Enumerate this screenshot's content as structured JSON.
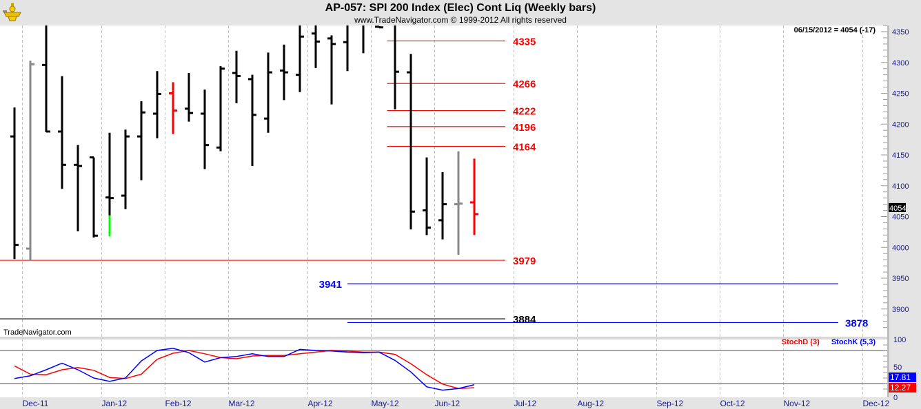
{
  "header": {
    "title": "AP-057:  SPI 200 Index (Elec) Cont Liq  (Weekly bars)",
    "subtitle": "www.TradeNavigator.com © 1999-2012 All rights reserved",
    "readout": "06/15/2012 = 4054 (-17)",
    "watermark": "TradeNavigator.com"
  },
  "colors": {
    "up": "#000000",
    "gray": "#888888",
    "red": "#ff0000",
    "green": "#00ff00",
    "stochD": "#ff0000",
    "stochK": "#0000ff",
    "axis_text": "#1a1a8c"
  },
  "chart_data": [
    {
      "type": "ohlc",
      "title": "SPI 200 Index (Elec) Cont Liq (Weekly bars)",
      "ylim": [
        3860,
        4365
      ],
      "y_ticks": [
        "4350",
        "4300",
        "4250",
        "4200",
        "4150",
        "4100",
        "4050",
        "4000",
        "3950",
        "3900"
      ],
      "last_price_label": "4054",
      "bars": [
        {
          "o": 4180,
          "h": 4227,
          "l": 3981,
          "c": 4004
        },
        {
          "o": 3998,
          "h": 4303,
          "l": 3978,
          "c": 4297,
          "color": "gray"
        },
        {
          "o": 4296,
          "h": 4370,
          "l": 4187,
          "c": 4188
        },
        {
          "o": 4188,
          "h": 4278,
          "l": 4095,
          "c": 4134
        },
        {
          "o": 4134,
          "h": 4166,
          "l": 4026,
          "c": 4132
        },
        {
          "o": 4146,
          "h": 4146,
          "l": 4016,
          "c": 4019
        },
        {
          "o": 4081,
          "h": 4186,
          "l": 4018,
          "c": 4080,
          "low_highlight": {
            "from": 4052,
            "color": "green"
          }
        },
        {
          "o": 4084,
          "h": 4191,
          "l": 4062,
          "c": 4180
        },
        {
          "o": 4180,
          "h": 4237,
          "l": 4109,
          "c": 4219
        },
        {
          "o": 4217,
          "h": 4286,
          "l": 4177,
          "c": 4249
        },
        {
          "o": 4250,
          "h": 4268,
          "l": 4184,
          "c": 4222,
          "color": "red"
        },
        {
          "o": 4225,
          "h": 4283,
          "l": 4204,
          "c": 4218
        },
        {
          "o": 4217,
          "h": 4256,
          "l": 4127,
          "c": 4166
        },
        {
          "o": 4162,
          "h": 4294,
          "l": 4156,
          "c": 4290
        },
        {
          "o": 4283,
          "h": 4319,
          "l": 4234,
          "c": 4278
        },
        {
          "o": 4273,
          "h": 4280,
          "l": 4132,
          "c": 4215
        },
        {
          "o": 4209,
          "h": 4316,
          "l": 4186,
          "c": 4284
        },
        {
          "o": 4287,
          "h": 4329,
          "l": 4239,
          "c": 4284
        },
        {
          "o": 4280,
          "h": 4370,
          "l": 4252,
          "c": 4342
        },
        {
          "o": 4347,
          "h": 4370,
          "l": 4291,
          "c": 4334
        },
        {
          "o": 4339,
          "h": 4344,
          "l": 4232,
          "c": 4330
        },
        {
          "o": 4333,
          "h": 4370,
          "l": 4286,
          "c": 4368
        },
        {
          "o": 4368,
          "h": 4375,
          "l": 4315,
          "c": 4370
        },
        {
          "o": 4358,
          "h": 4359,
          "l": 4356,
          "c": 4357
        },
        {
          "o": 4368,
          "h": 4370,
          "l": 4224,
          "c": 4285
        },
        {
          "o": 4284,
          "h": 4314,
          "l": 4029,
          "c": 4058
        },
        {
          "o": 4060,
          "h": 4146,
          "l": 4020,
          "c": 4032
        },
        {
          "o": 4044,
          "h": 4122,
          "l": 4013,
          "c": 4070
        },
        {
          "o": 4070,
          "h": 4156,
          "l": 3988,
          "c": 4071,
          "color": "gray"
        },
        {
          "o": 4073,
          "h": 4144,
          "l": 4020,
          "c": 4054,
          "color": "red"
        }
      ],
      "levels": [
        {
          "value": 4335,
          "label": "4335",
          "color": "red",
          "from_bar": 23.5,
          "to_bar": 31,
          "label_side": "right"
        },
        {
          "value": 4266,
          "label": "4266",
          "color": "red",
          "from_bar": 23.5,
          "to_bar": 31,
          "label_side": "right"
        },
        {
          "value": 4222,
          "label": "4222",
          "color": "red",
          "from_bar": 23.5,
          "to_bar": 31,
          "label_side": "right"
        },
        {
          "value": 4196,
          "label": "4196",
          "color": "red",
          "from_bar": 23.5,
          "to_bar": 31,
          "label_side": "right"
        },
        {
          "value": 4164,
          "label": "4164",
          "color": "red",
          "from_bar": 23.5,
          "to_bar": 31,
          "label_side": "right"
        },
        {
          "value": 3979,
          "label": "3979",
          "color": "red",
          "from_bar": -1,
          "to_bar": 31,
          "label_side": "right"
        },
        {
          "value": 3941,
          "label": "3941",
          "color": "blue",
          "from_bar": 21,
          "to_bar": 52,
          "label_side": "left"
        },
        {
          "value": 3884,
          "label": "3884",
          "color": "black",
          "from_bar": -1,
          "to_bar": 31,
          "label_side": "right"
        },
        {
          "value": 3878,
          "label": "3878",
          "color": "blue",
          "from_bar": 21,
          "to_bar": 52,
          "label_side": "right"
        }
      ]
    },
    {
      "type": "line",
      "title": "Stochastic",
      "ylim": [
        0,
        100
      ],
      "y_ticks": [
        "100",
        "50",
        "0"
      ],
      "reference_lines": [
        80,
        20
      ],
      "series": [
        {
          "name": "StochD (3)",
          "color": "stochD",
          "last_label": "12.27",
          "values": [
            52,
            37,
            36,
            45,
            49,
            44,
            31,
            29,
            37,
            64,
            75,
            80,
            74,
            67,
            65,
            70,
            71,
            71,
            74,
            77,
            80,
            79,
            77,
            77,
            73,
            56,
            36,
            19,
            11,
            12.27
          ]
        },
        {
          "name": "StochK (5,3)",
          "color": "stochK",
          "last_label": "17.81",
          "values": [
            29,
            34,
            45,
            57,
            45,
            30,
            24,
            30,
            61,
            80,
            84,
            76,
            59,
            67,
            69,
            74,
            69,
            69,
            82,
            80,
            79,
            77,
            76,
            77,
            62,
            41,
            14,
            8,
            11,
            17.81
          ]
        }
      ]
    }
  ],
  "x_axis": {
    "months": [
      {
        "label": "Dec-11",
        "first_bar": 1
      },
      {
        "label": "Jan-12",
        "first_bar": 6
      },
      {
        "label": "Feb-12",
        "first_bar": 10
      },
      {
        "label": "Mar-12",
        "first_bar": 14
      },
      {
        "label": "Apr-12",
        "first_bar": 19
      },
      {
        "label": "May-12",
        "first_bar": 23
      },
      {
        "label": "Jun-12",
        "first_bar": 27
      },
      {
        "label": "Jul-12",
        "first_bar": 32
      },
      {
        "label": "Aug-12",
        "first_bar": 36
      },
      {
        "label": "Sep-12",
        "first_bar": 41
      },
      {
        "label": "Oct-12",
        "first_bar": 45
      },
      {
        "label": "Nov-12",
        "first_bar": 49
      },
      {
        "label": "Dec-12",
        "first_bar": 54
      }
    ]
  }
}
